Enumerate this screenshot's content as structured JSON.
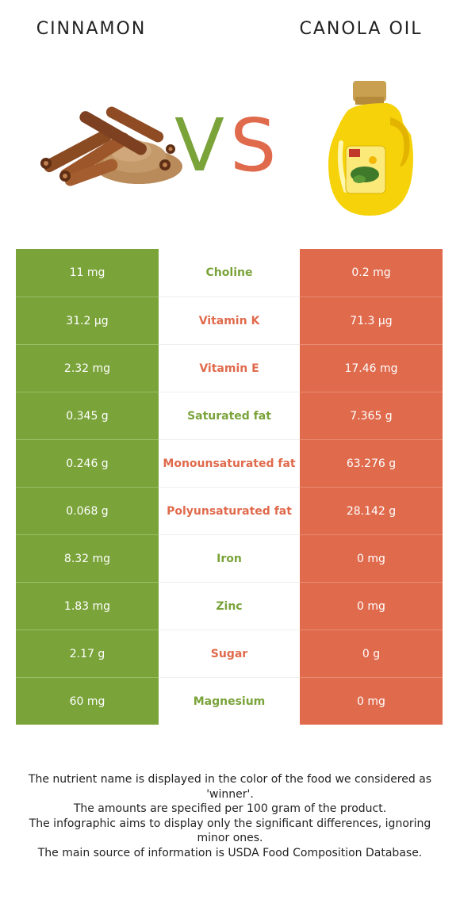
{
  "header": {
    "left_title": "CINNAMON",
    "right_title": "CANOLA OIL",
    "vs_v": "V",
    "vs_s": "S"
  },
  "colors": {
    "left_food": "#7aa33a",
    "right_food": "#e06a4c"
  },
  "rows": [
    {
      "left": "11 mg",
      "nutrient": "Choline",
      "right": "0.2 mg",
      "winner": "left"
    },
    {
      "left": "31.2 µg",
      "nutrient": "Vitamin K",
      "right": "71.3 µg",
      "winner": "right"
    },
    {
      "left": "2.32 mg",
      "nutrient": "Vitamin E",
      "right": "17.46 mg",
      "winner": "right"
    },
    {
      "left": "0.345 g",
      "nutrient": "Saturated fat",
      "right": "7.365 g",
      "winner": "left"
    },
    {
      "left": "0.246 g",
      "nutrient": "Monounsaturated fat",
      "right": "63.276 g",
      "winner": "right"
    },
    {
      "left": "0.068 g",
      "nutrient": "Polyunsaturated fat",
      "right": "28.142 g",
      "winner": "right"
    },
    {
      "left": "8.32 mg",
      "nutrient": "Iron",
      "right": "0 mg",
      "winner": "left"
    },
    {
      "left": "1.83 mg",
      "nutrient": "Zinc",
      "right": "0 mg",
      "winner": "left"
    },
    {
      "left": "2.17 g",
      "nutrient": "Sugar",
      "right": "0 g",
      "winner": "right"
    },
    {
      "left": "60 mg",
      "nutrient": "Magnesium",
      "right": "0 mg",
      "winner": "left"
    }
  ],
  "footnote": [
    "The nutrient name is displayed in the color of the food we considered as 'winner'.",
    "The amounts are specified per 100 gram of the product.",
    "The infographic aims to display only the significant differences, ignoring minor ones.",
    "The main source of information is USDA Food Composition Database."
  ]
}
